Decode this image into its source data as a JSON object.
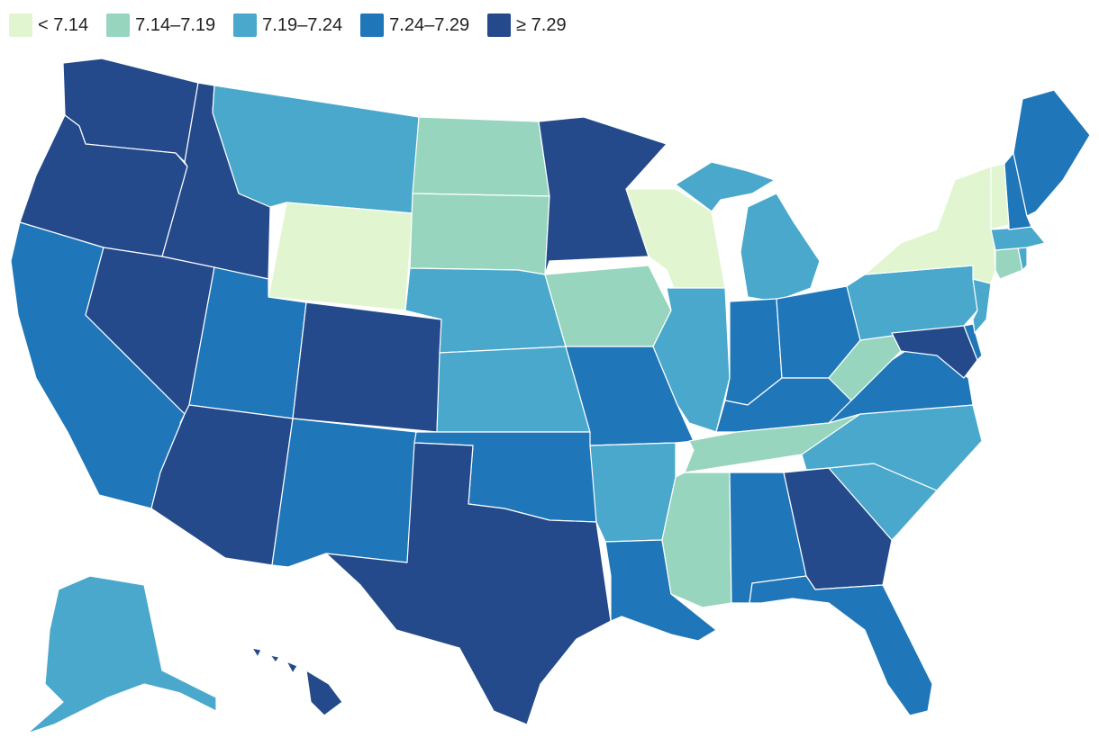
{
  "legend": {
    "items": [
      {
        "label": "< 7.14",
        "color": "#e1f6d0"
      },
      {
        "label": "7.14–7.19",
        "color": "#97d5bf"
      },
      {
        "label": "7.19–7.24",
        "color": "#4aa8cc"
      },
      {
        "label": "7.24–7.29",
        "color": "#1f76b8"
      },
      {
        "label": "≥ 7.29",
        "color": "#244a8b"
      }
    ]
  },
  "states": {
    "WA": 4,
    "OR": 4,
    "ID": 4,
    "NV": 4,
    "AZ": 4,
    "CO": 4,
    "TX": 4,
    "MN": 4,
    "GA": 4,
    "MD": 4,
    "HI": 4,
    "CA": 3,
    "UT": 3,
    "NM": 3,
    "OK": 3,
    "MO": 3,
    "LA": 3,
    "AL": 3,
    "FL": 3,
    "IN": 3,
    "OH": 3,
    "KY": 3,
    "VA": 3,
    "ME": 3,
    "NH": 3,
    "DE": 3,
    "MT": 2,
    "NE": 2,
    "KS": 2,
    "AR": 2,
    "IL": 2,
    "MI": 2,
    "PA": 2,
    "NJ": 2,
    "NC": 2,
    "SC": 2,
    "MA": 2,
    "RI": 2,
    "AK": 2,
    "ND": 1,
    "SD": 1,
    "IA": 1,
    "MS": 1,
    "TN": 1,
    "WV": 1,
    "CT": 1,
    "WY": 0,
    "WI": 0,
    "NY": 0,
    "VT": 0
  }
}
